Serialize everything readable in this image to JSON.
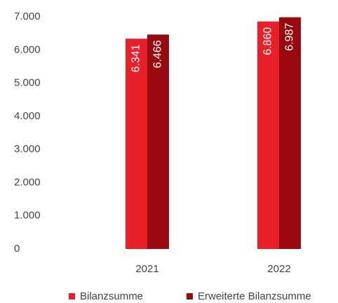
{
  "chart_data": {
    "type": "bar",
    "categories": [
      "2021",
      "2022"
    ],
    "series": [
      {
        "name": "Bilanzsumme",
        "color": "#e8202a",
        "values": [
          6341,
          6860
        ],
        "value_labels": [
          "6.341",
          "6.860"
        ]
      },
      {
        "name": "Erweiterte Bilanzsumme",
        "color": "#990a10",
        "values": [
          6466,
          6987
        ],
        "value_labels": [
          "6.466",
          "6.987"
        ]
      }
    ],
    "ylim": [
      0,
      7000
    ],
    "yticks": [
      0,
      {
        "value": 1000,
        "label": "1.000"
      },
      {
        "value": 2000,
        "label": "2.000"
      },
      {
        "value": 3000,
        "label": "3.000"
      },
      {
        "value": 4000,
        "label": "4.000"
      },
      {
        "value": 5000,
        "label": "5.000"
      },
      {
        "value": 6000,
        "label": "6.000"
      },
      {
        "value": 7000,
        "label": "7.000"
      }
    ],
    "grid": false,
    "legend": "bottom"
  }
}
